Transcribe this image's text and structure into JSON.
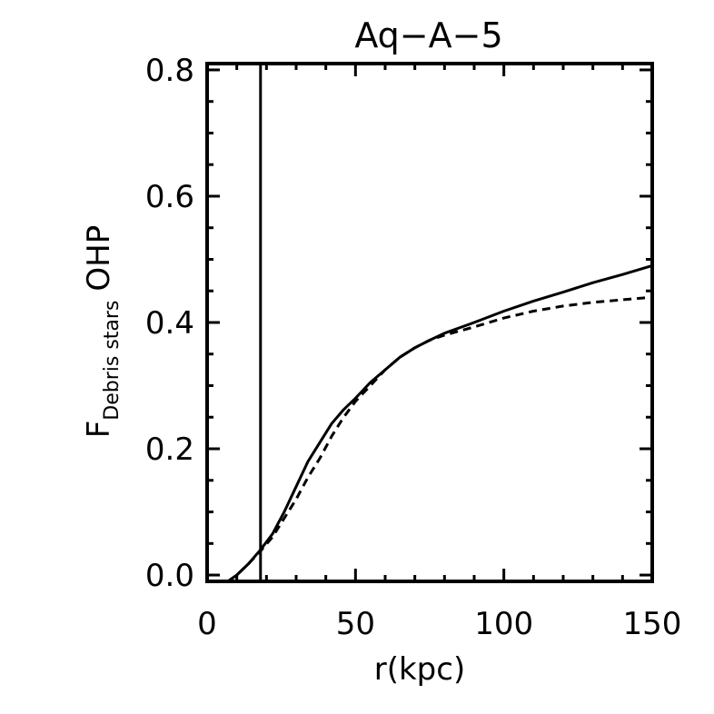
{
  "chart_data": {
    "type": "line",
    "title": "Aq−A−5",
    "xlabel": "r(kpc)",
    "ylabel_main": "F",
    "ylabel_sub": "Debris stars",
    "ylabel_suffix": "OHP",
    "xlim": [
      0,
      150
    ],
    "ylim": [
      -0.01,
      0.81
    ],
    "x_ticks": [
      0,
      50,
      100,
      150
    ],
    "x_tick_labels": [
      "0",
      "50",
      "100",
      "150"
    ],
    "y_ticks": [
      0.0,
      0.2,
      0.4,
      0.6,
      0.8
    ],
    "y_tick_labels": [
      "0.0",
      "0.2",
      "0.4",
      "0.6",
      "0.8"
    ],
    "vline_x": 18,
    "grid": false,
    "colors": {
      "line": "#000000",
      "background": "#ffffff"
    },
    "series": [
      {
        "style": "solid",
        "x": [
          7,
          10,
          14,
          18,
          22,
          26,
          30,
          34,
          38,
          42,
          46,
          50,
          55,
          60,
          65,
          70,
          75,
          80,
          90,
          100,
          110,
          120,
          130,
          140,
          150
        ],
        "y": [
          -0.01,
          0.0,
          0.018,
          0.04,
          0.065,
          0.1,
          0.14,
          0.18,
          0.21,
          0.24,
          0.262,
          0.28,
          0.305,
          0.325,
          0.345,
          0.36,
          0.372,
          0.383,
          0.4,
          0.418,
          0.434,
          0.448,
          0.463,
          0.476,
          0.49
        ]
      },
      {
        "style": "dashed",
        "x": [
          7,
          10,
          14,
          18,
          22,
          26,
          30,
          34,
          38,
          42,
          46,
          50,
          55,
          60,
          65,
          70,
          75,
          80,
          90,
          100,
          110,
          120,
          130,
          140,
          150
        ],
        "y": [
          -0.01,
          0.0,
          0.018,
          0.038,
          0.06,
          0.09,
          0.12,
          0.155,
          0.185,
          0.22,
          0.25,
          0.275,
          0.3,
          0.325,
          0.345,
          0.36,
          0.372,
          0.38,
          0.393,
          0.407,
          0.418,
          0.426,
          0.432,
          0.436,
          0.44
        ]
      }
    ]
  }
}
